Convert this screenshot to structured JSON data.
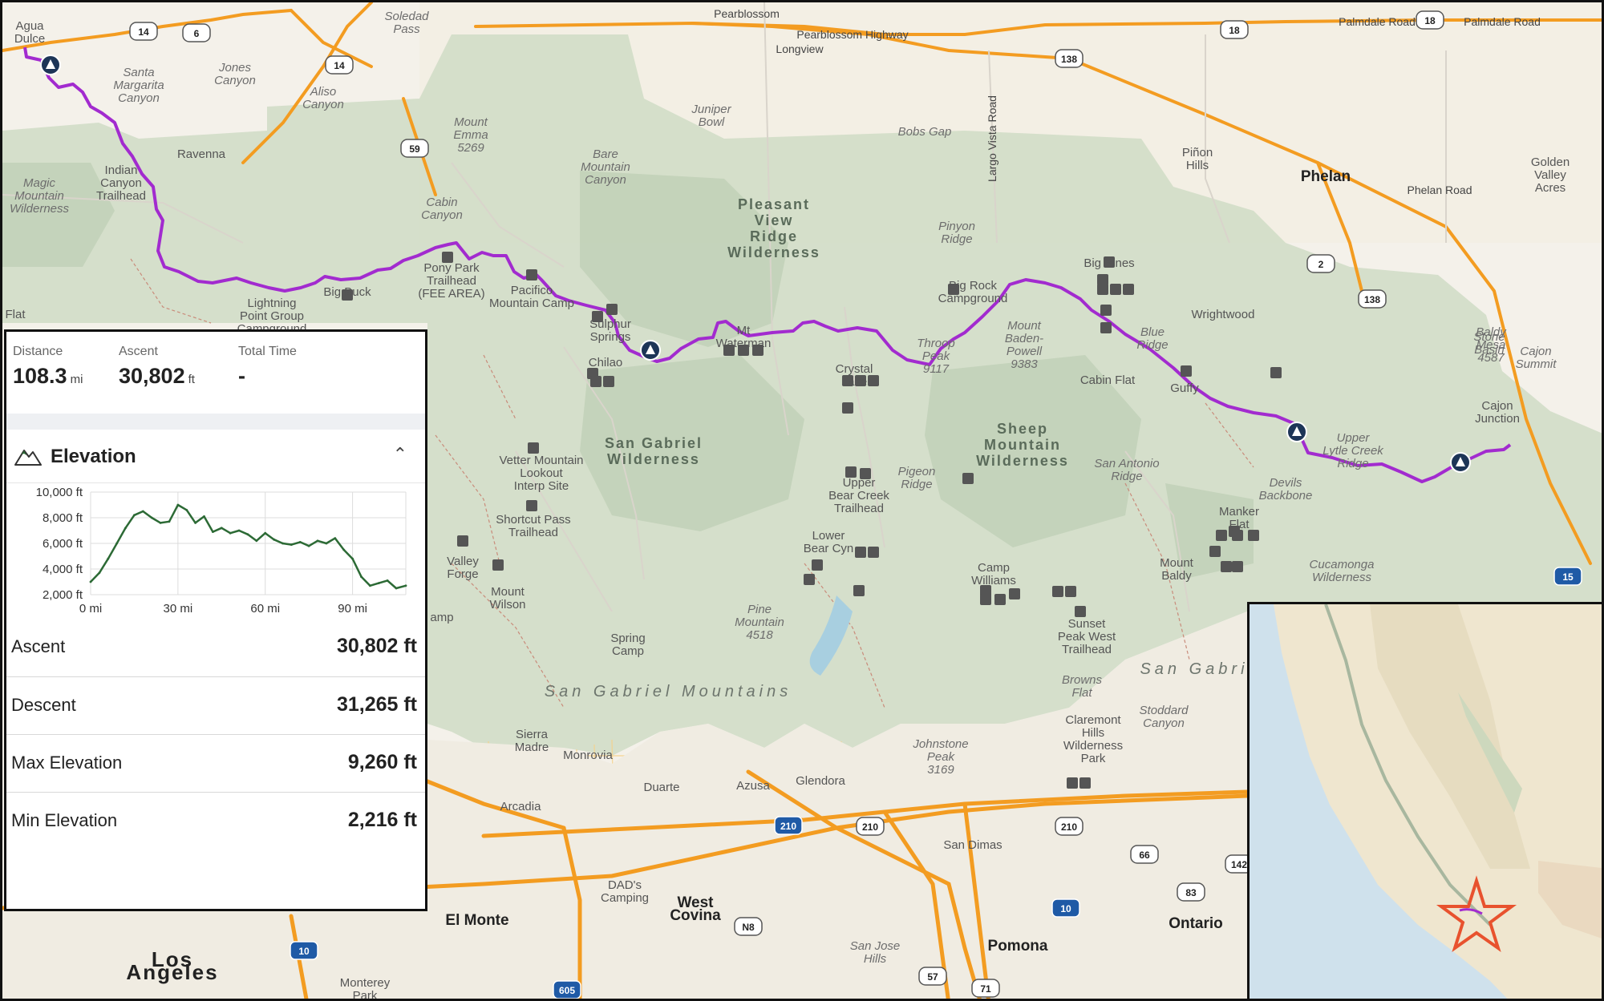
{
  "colors": {
    "route": "#a22bcf",
    "forest": "#cfdcc6",
    "urban": "#f2efe9",
    "freeway": "#f39c21",
    "elevation_line": "#2c6a35",
    "inset_star": "#e8522e"
  },
  "map": {
    "places": {
      "agua_dulce": "Agua\nDulce",
      "pearblossom": "Pearblossom",
      "longview": "Longview",
      "pearblossom_hwy": "Pearblossom Highway",
      "palmdale_road_1": "Palmdale Road",
      "palmdale_road_2": "Palmdale Road",
      "soledad_pass": "Soledad\nPass",
      "santa_margarita_canyon": "Santa\nMargarita\nCanyon",
      "jones_canyon": "Jones\nCanyon",
      "aliso_canyon": "Aliso\nCanyon",
      "mount_emma": "Mount\nEmma\n5269",
      "juniper_bowl": "Juniper\nBowl",
      "bobs_gap": "Bobs Gap",
      "largo_vista_road": "Largo Vista Road",
      "pinon_hills": "Piñon\nHills",
      "phelan": "Phelan",
      "phelan_road": "Phelan Road",
      "golden_valley_acres": "Golden\nValley\nAcres",
      "ravenna": "Ravenna",
      "indian_canyon_trailhead": "Indian\nCanyon\nTrailhead",
      "magic_mountain_wilderness": "Magic\nMountain\nWilderness",
      "bare_mountain_canyon": "Bare\nMountain\nCanyon",
      "cabin_canyon": "Cabin\nCanyon",
      "pleasant_view_ridge_wilderness": "Pleasant\nView\nRidge\nWilderness",
      "pinyon_ridge": "Pinyon\nRidge",
      "big_rock_campground": "Big Rock\nCampground",
      "big_pines": "Big Pines",
      "wrightwood": "Wrightwood",
      "stone_basin": "Stone\nBasin",
      "baldy_mesa": "Baldy\nMesa\n4587",
      "cajon_summit": "Cajon\nSummit",
      "cajon_junction": "Cajon\nJunction",
      "lightning_point": "Lightning\nPoint Group\nCampground",
      "big_buck": "Big Buck",
      "pony_park": "Pony Park\nTrailhead\n(FEE AREA)",
      "pacifico": "Pacifico\nMountain Camp",
      "sulphur_springs": "Sulphur\nSprings",
      "flat": "Flat",
      "chilao": "Chilao",
      "mt_waterman": "Mt\nWaterman",
      "crystal_lake": "Crystal\nLake",
      "throop_peak": "Throop\nPeak\n9117",
      "mount_baden_powell": "Mount\nBaden-\nPowell\n9383",
      "blue_ridge": "Blue\nRidge",
      "cabin_flat": "Cabin Flat",
      "guffy": "Guffy",
      "upper_lytle_creek_ridge": "Upper\nLytle Creek\nRidge",
      "san_gabriel_wilderness": "San Gabriel\nWilderness",
      "sheep_mountain_wilderness": "Sheep\nMountain\nWilderness",
      "san_antonio_ridge": "San Antonio\nRidge",
      "devils_backbone": "Devils\nBackbone",
      "vetter": "Vetter Mountain\nLookout\nInterp Site",
      "shortcut_pass": "Shortcut Pass\nTrailhead",
      "upper_bear_creek": "Upper\nBear Creek\nTrailhead",
      "pigeon_ridge": "Pigeon\nRidge",
      "manker_flat": "Manker\nFlat",
      "mount_baldy": "Mount\nBaldy",
      "cucamonga_wilderness": "Cucamonga\nWilderness",
      "valley_forge": "Valley\nForge",
      "lower_bear_cyn": "Lower\nBear Cyn",
      "camp_williams": "Camp\nWilliams",
      "mount_wilson": "Mount\nWilson",
      "pine_mountain": "Pine\nMountain\n4518",
      "spring_camp": "Spring\nCamp",
      "sunset_peak": "Sunset\nPeak West\nTrailhead",
      "browns_flat": "Browns\nFlat",
      "san_gabriel_mountains": "San Gabriel Mountains",
      "san_gabri": "San Gabri",
      "stoddard_canyon": "Stoddard\nCanyon",
      "camp_partial": "amp",
      "sierra_madre": "Sierra\nMadre",
      "monrovia": "Monrovia",
      "duarte": "Duarte",
      "azusa": "Azusa",
      "glendora": "Glendora",
      "claremont_hills": "Claremont\nHills\nWilderness\nPark",
      "johnstone_peak": "Johnstone\nPeak\n3169",
      "san_dimas": "San Dimas",
      "arcadia": "Arcadia",
      "el_monte": "El Monte",
      "west_covina": "West\nCovina",
      "dads_camping": "DAD's\nCamping",
      "san_jose_hills": "San Jose\nHills",
      "pomona": "Pomona",
      "ontario": "Ontario",
      "los_angeles": "Los\nAngeles",
      "monterey_park": "Monterey\nPark"
    },
    "shields": {
      "r14a": "14",
      "r6": "6",
      "r14b": "14",
      "r138a": "138",
      "r18a": "18",
      "r18b": "18",
      "r59": "59",
      "r2": "2",
      "r138b": "138",
      "i15": "15",
      "i210a": "210",
      "r210": "210",
      "r210b": "210",
      "r66": "66",
      "i10a": "10",
      "r83": "83",
      "n8": "N8",
      "i10b": "10",
      "r57": "57",
      "r71": "71",
      "i605": "605",
      "r142": "142"
    }
  },
  "stats": {
    "distance": {
      "label": "Distance",
      "value": "108.3",
      "unit": "mi"
    },
    "ascent": {
      "label": "Ascent",
      "value": "30,802",
      "unit": "ft"
    },
    "total_time": {
      "label": "Total Time",
      "value": "-"
    }
  },
  "elevation": {
    "title": "Elevation",
    "rows": [
      {
        "label": "Ascent",
        "value": "30,802 ft"
      },
      {
        "label": "Descent",
        "value": "31,265 ft"
      },
      {
        "label": "Max Elevation",
        "value": "9,260 ft"
      },
      {
        "label": "Min Elevation",
        "value": "2,216 ft"
      }
    ]
  },
  "chart_data": {
    "type": "area",
    "title": "Elevation",
    "xlabel": "",
    "ylabel": "",
    "x_unit": "mi",
    "y_unit": "ft",
    "xlim": [
      0,
      108.3
    ],
    "ylim": [
      2000,
      10000
    ],
    "x_ticks": [
      "0 mi",
      "30 mi",
      "60 mi",
      "90 mi"
    ],
    "y_ticks": [
      "2,000 ft",
      "4,000 ft",
      "6,000 ft",
      "8,000 ft",
      "10,000 ft"
    ],
    "grid": true,
    "x": [
      0,
      3,
      6,
      9,
      12,
      15,
      18,
      21,
      24,
      27,
      30,
      33,
      36,
      39,
      42,
      45,
      48,
      51,
      54,
      57,
      60,
      63,
      66,
      69,
      72,
      75,
      78,
      81,
      84,
      87,
      90,
      93,
      96,
      99,
      102,
      105,
      108.3
    ],
    "series": [
      {
        "values": [
          3000,
          3700,
          4800,
          6000,
          7200,
          8200,
          8500,
          8000,
          7600,
          7700,
          9000,
          8600,
          7600,
          8100,
          6900,
          7200,
          6800,
          7000,
          6700,
          6200,
          6800,
          6300,
          6000,
          5900,
          6100,
          5800,
          6200,
          6000,
          6400,
          5500,
          4800,
          3400,
          2700,
          2900,
          3100,
          2500,
          2700
        ]
      }
    ]
  }
}
